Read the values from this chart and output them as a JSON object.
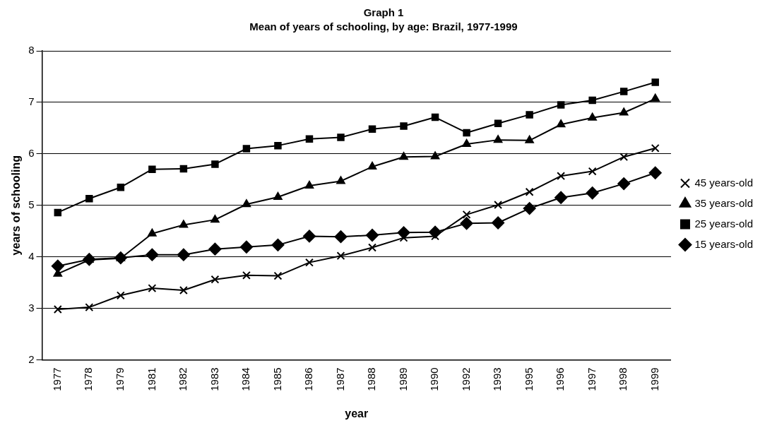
{
  "chart_data": {
    "type": "line",
    "title": "Graph 1",
    "subtitle": "Mean of years of schooling, by age: Brazil, 1977-1999",
    "xlabel": "year",
    "ylabel": "years of schooling",
    "categories": [
      "1977",
      "1978",
      "1979",
      "1981",
      "1982",
      "1983",
      "1984",
      "1985",
      "1986",
      "1987",
      "1988",
      "1989",
      "1990",
      "1992",
      "1993",
      "1995",
      "1996",
      "1997",
      "1998",
      "1999"
    ],
    "series": [
      {
        "name": "45 years-old",
        "color": "#000000",
        "marker": "cross",
        "values": [
          2.98,
          3.02,
          3.25,
          3.39,
          3.35,
          3.56,
          3.64,
          3.63,
          3.89,
          4.02,
          4.18,
          4.37,
          4.4,
          4.82,
          5.01,
          5.26,
          5.57,
          5.66,
          5.94,
          6.11
        ]
      },
      {
        "name": "35 years-old",
        "color": "#000000",
        "marker": "triangle",
        "values": [
          3.67,
          3.94,
          3.97,
          4.45,
          4.62,
          4.72,
          5.02,
          5.16,
          5.38,
          5.47,
          5.75,
          5.94,
          5.95,
          6.19,
          6.27,
          6.26,
          6.57,
          6.7,
          6.8,
          7.07
        ]
      },
      {
        "name": "25 years-old",
        "color": "#000000",
        "marker": "square",
        "values": [
          4.86,
          5.13,
          5.35,
          5.7,
          5.71,
          5.8,
          6.1,
          6.16,
          6.29,
          6.32,
          6.48,
          6.54,
          6.71,
          6.41,
          6.59,
          6.76,
          6.95,
          7.04,
          7.21,
          7.39
        ]
      },
      {
        "name": "15 years-old",
        "color": "#000000",
        "marker": "diamond",
        "values": [
          3.82,
          3.95,
          3.98,
          4.04,
          4.04,
          4.15,
          4.19,
          4.23,
          4.4,
          4.39,
          4.42,
          4.47,
          4.48,
          4.65,
          4.66,
          4.94,
          5.15,
          5.24,
          5.42,
          5.63
        ]
      }
    ],
    "ylim": [
      2,
      8
    ],
    "yticks": [
      2,
      3,
      4,
      5,
      6,
      7,
      8
    ],
    "grid": "y",
    "legend": "right",
    "line_style": "solid"
  }
}
